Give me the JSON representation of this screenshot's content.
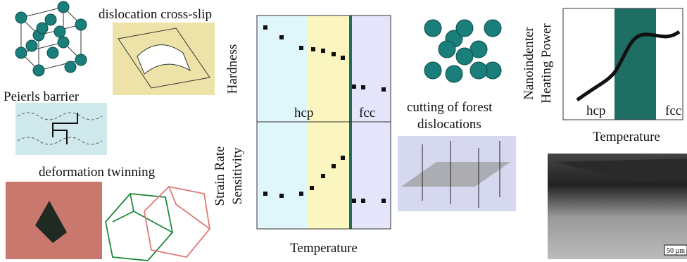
{
  "labels": {
    "cross_slip": "dislocation cross-slip",
    "peierls": "Peierls barrier",
    "twinning": "deformation twinning",
    "hardness": "Hardness",
    "srs_line1": "Strain Rate",
    "srs_line2": "Sensitivity",
    "hcp": "hcp",
    "fcc": "fcc",
    "temperature": "Temperature",
    "forest_line1": "cutting of forest",
    "forest_line2": "dislocations",
    "heating_line1": "Nanoindenter",
    "heating_line2": "Heating Power",
    "hcp_right": "hcp",
    "fcc_right": "fcc",
    "temperature_right": "Temperature",
    "scale_bar": "50 µm"
  }
}
